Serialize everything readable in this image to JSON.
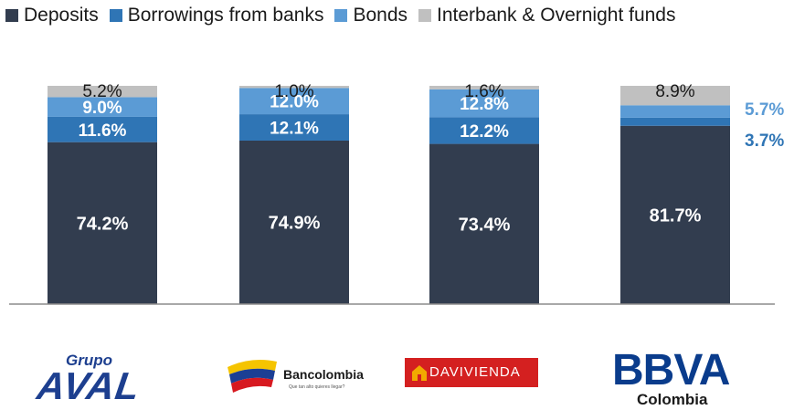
{
  "chart_data": {
    "type": "bar",
    "stacked": true,
    "normalized_percent": true,
    "categories": [
      "Grupo AVAL",
      "Bancolombia",
      "Davivienda",
      "BBVA Colombia"
    ],
    "series": [
      {
        "name": "Deposits",
        "color": "#323d4f",
        "values": [
          74.2,
          74.9,
          73.4,
          81.7
        ],
        "labels": [
          "74.2%",
          "74.9%",
          "73.4%",
          "81.7%"
        ]
      },
      {
        "name": "Borrowings from banks",
        "color": "#2f75b5",
        "values": [
          11.6,
          12.1,
          12.2,
          3.7
        ],
        "labels": [
          "11.6%",
          "12.1%",
          "12.2%",
          "3.7%"
        ]
      },
      {
        "name": "Bonds",
        "color": "#5b9bd5",
        "values": [
          9.0,
          12.0,
          12.8,
          5.7
        ],
        "labels": [
          "9.0%",
          "12.0%",
          "12.8%",
          "5.7%"
        ]
      },
      {
        "name": "Interbank & Overnight funds",
        "color": "#c0c0c0",
        "values": [
          5.2,
          1.0,
          1.6,
          8.9
        ],
        "labels": [
          "5.2%",
          "1.0%",
          "1.6%",
          "8.9%"
        ]
      }
    ],
    "ylim": [
      0,
      100
    ],
    "grid": false,
    "legend_position": "top"
  },
  "logos": {
    "aval_top": "Grupo",
    "aval_main": "AVAL",
    "bancolombia": "Bancolombia",
    "bancolombia_tagline": "Que tan alto quieres llegar?",
    "davivienda": "DAVIVIENDA",
    "bbva": "BBVA",
    "bbva_sub": "Colombia"
  }
}
